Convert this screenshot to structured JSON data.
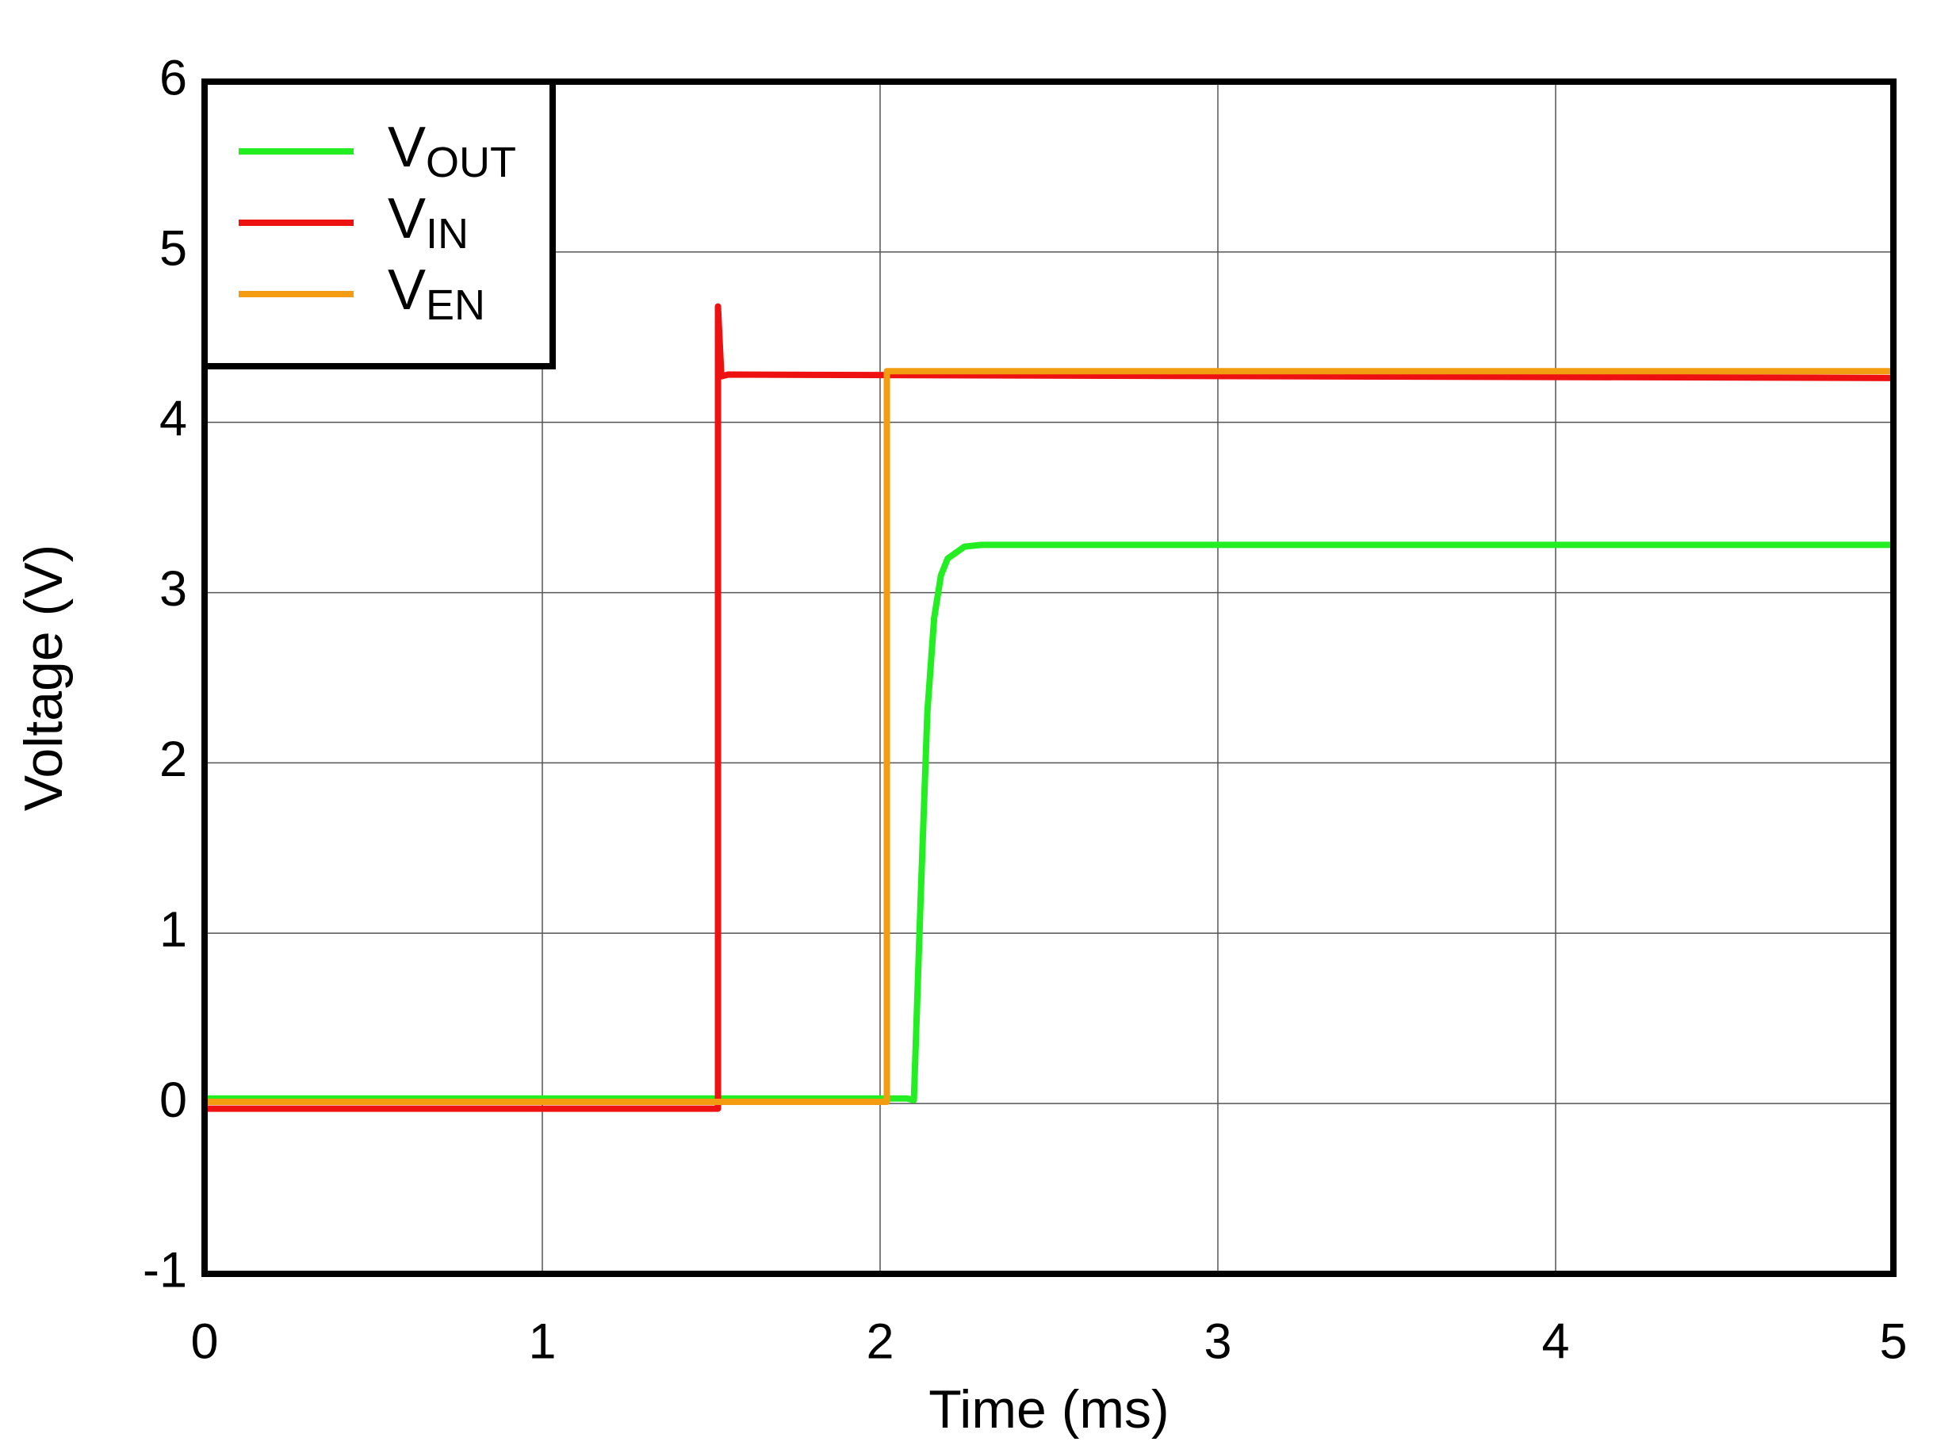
{
  "chart_data": {
    "type": "line",
    "xlabel": "Time (ms)",
    "ylabel": "Voltage (V)",
    "xlim": [
      0,
      5
    ],
    "ylim": [
      -1,
      6
    ],
    "xticks": [
      0,
      1,
      2,
      3,
      4,
      5
    ],
    "yticks": [
      -1,
      0,
      1,
      2,
      3,
      4,
      5,
      6
    ],
    "grid": true,
    "legend": "upper left",
    "series": [
      {
        "name": "VOUT",
        "color": "#22ee22",
        "x": [
          0,
          2.08,
          2.1,
          2.12,
          2.14,
          2.16,
          2.18,
          2.2,
          2.25,
          2.3,
          5
        ],
        "values": [
          0.03,
          0.03,
          0.02,
          1.2,
          2.3,
          2.85,
          3.1,
          3.2,
          3.27,
          3.28,
          3.28
        ]
      },
      {
        "name": "VIN",
        "color": "#ee1111",
        "x": [
          0,
          1.52,
          1.52,
          1.53,
          1.55,
          5
        ],
        "values": [
          -0.03,
          -0.03,
          4.68,
          4.27,
          4.28,
          4.26
        ]
      },
      {
        "name": "VEN",
        "color": "#f39c12",
        "x": [
          0,
          2.02,
          2.02,
          5
        ],
        "values": [
          0.01,
          0.01,
          4.3,
          4.3
        ]
      }
    ]
  }
}
